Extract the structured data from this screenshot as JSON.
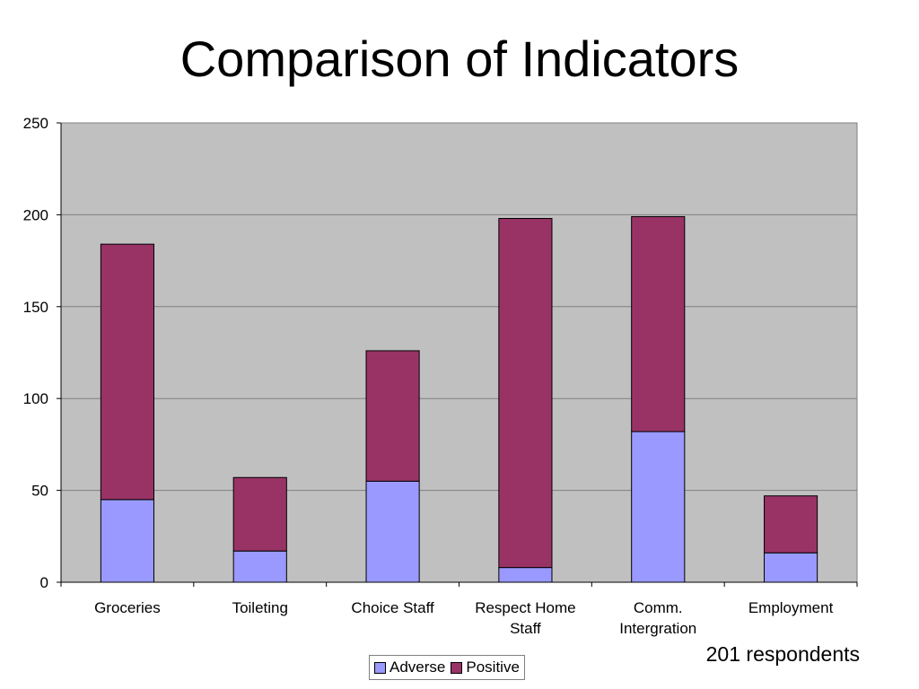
{
  "chart_data": {
    "type": "bar",
    "stacked": true,
    "title": "Comparison of Indicators",
    "categories": [
      [
        "Groceries"
      ],
      [
        "Toileting"
      ],
      [
        "Choice Staff"
      ],
      [
        "Respect Home",
        "Staff"
      ],
      [
        "Comm.",
        "Intergration"
      ],
      [
        "Employment"
      ]
    ],
    "series": [
      {
        "name": "Adverse",
        "color": "#9999ff",
        "values": [
          45,
          17,
          55,
          8,
          82,
          16
        ]
      },
      {
        "name": "Positive",
        "color": "#993366",
        "values": [
          139,
          40,
          71,
          190,
          117,
          31
        ]
      }
    ],
    "ylim": [
      0,
      250
    ],
    "yticks": [
      0,
      50,
      100,
      150,
      200,
      250
    ],
    "grid": true,
    "plot_background": "#c0c0c0",
    "legend_position": "bottom-center"
  },
  "annotation": "201 respondents"
}
